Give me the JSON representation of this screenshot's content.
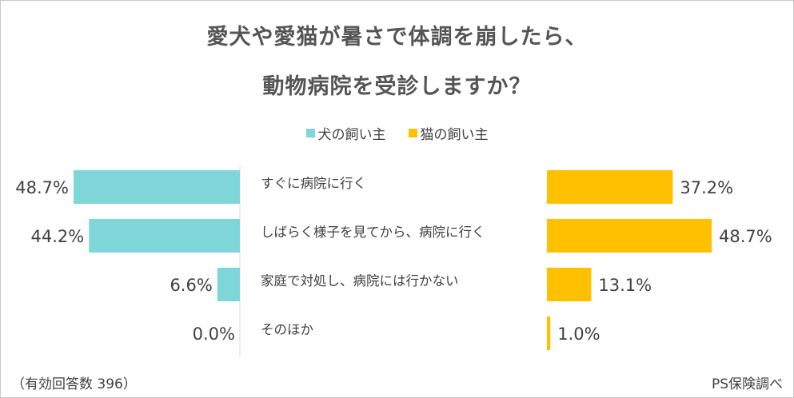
{
  "colors": {
    "dog": "#7fd6d9",
    "cat": "#ffc000",
    "axis": "#d9d9d9"
  },
  "chart_data": {
    "type": "bar",
    "title": "愛犬や愛猫が暑さで体調を崩したら、",
    "subtitle": "動物病院を受診しますか？",
    "categories": [
      "すぐに病院に行く",
      "しばらく様子を見てから、病院に行く",
      "家庭で対処し、病院には行かない",
      "そのほか"
    ],
    "series": [
      {
        "name": "犬の飼い主",
        "values": [
          48.7,
          44.2,
          6.6,
          0.0
        ],
        "labels": [
          "48.7%",
          "44.2%",
          "6.6%",
          "0.0%"
        ]
      },
      {
        "name": "猫の飼い主",
        "values": [
          37.2,
          48.7,
          13.1,
          1.0
        ],
        "labels": [
          "37.2%",
          "48.7%",
          "13.1%",
          "1.0%"
        ]
      }
    ],
    "xlim": [
      0,
      48.7
    ],
    "legend": "top-center"
  },
  "footnote": "（有効回答数 396）",
  "source": "PS保険調べ"
}
